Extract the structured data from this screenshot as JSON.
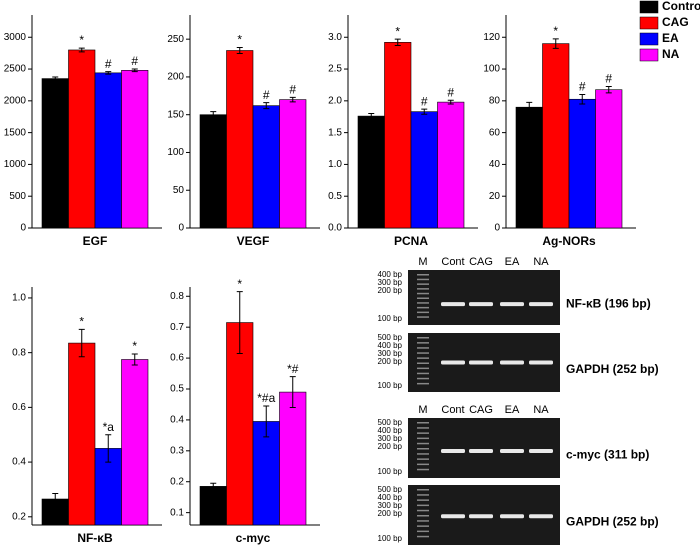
{
  "legend": {
    "series": [
      {
        "name": "Control",
        "color": "#000000"
      },
      {
        "name": "CAG",
        "color": "#ff0000"
      },
      {
        "name": "EA",
        "color": "#0000ff"
      },
      {
        "name": "NA",
        "color": "#ff00ff"
      }
    ]
  },
  "chart_data": [
    {
      "type": "bar",
      "xlabel": "EGF",
      "values": [
        2350,
        2800,
        2440,
        2480
      ],
      "errors": [
        25,
        30,
        20,
        20
      ],
      "annotations": [
        null,
        "*",
        "#",
        "#"
      ],
      "ylim": [
        0,
        3350
      ],
      "yticks": [
        0,
        500,
        1000,
        1500,
        2000,
        2500,
        3000
      ]
    },
    {
      "type": "bar",
      "xlabel": "VEGF",
      "values": [
        150,
        235,
        162,
        170
      ],
      "errors": [
        4,
        4,
        4,
        3
      ],
      "annotations": [
        null,
        "*",
        "#",
        "#"
      ],
      "ylim": [
        0,
        282
      ],
      "yticks": [
        0,
        50,
        100,
        150,
        200,
        250
      ]
    },
    {
      "type": "bar",
      "xlabel": "PCNA",
      "values": [
        1.76,
        2.92,
        1.83,
        1.98
      ],
      "errors": [
        0.04,
        0.05,
        0.04,
        0.03
      ],
      "annotations": [
        null,
        "*",
        "#",
        "#"
      ],
      "ylim": [
        0,
        3.35
      ],
      "yticks": [
        {
          "value": 0,
          "label": "0.0"
        },
        0.5,
        {
          "value": 1,
          "label": "1.0"
        },
        1.5,
        {
          "value": 2,
          "label": "2.0"
        },
        2.5,
        {
          "value": 3,
          "label": "3.0"
        }
      ]
    },
    {
      "type": "bar",
      "xlabel": "Ag-NORs",
      "values": [
        76,
        116,
        81,
        87
      ],
      "errors": [
        3,
        3,
        3,
        2
      ],
      "annotations": [
        null,
        "*",
        "#",
        "#"
      ],
      "ylim": [
        0,
        134
      ],
      "yticks": [
        0,
        20,
        40,
        60,
        80,
        100,
        120
      ]
    },
    {
      "type": "bar",
      "xlabel": "NF-κB",
      "values": [
        0.265,
        0.835,
        0.45,
        0.775
      ],
      "errors": [
        0.02,
        0.05,
        0.05,
        0.02
      ],
      "annotations": [
        null,
        "*",
        "*a",
        "*"
      ],
      "ylim": [
        0.17,
        1.04
      ],
      "yticks": [
        0.2,
        0.4,
        0.6,
        0.8,
        {
          "value": 1,
          "label": "1.0"
        }
      ]
    },
    {
      "type": "bar",
      "xlabel": "c-myc",
      "values": [
        0.185,
        0.715,
        0.395,
        0.49
      ],
      "errors": [
        0.01,
        0.1,
        0.05,
        0.05
      ],
      "annotations": [
        null,
        "*",
        "*#a",
        "*#"
      ],
      "ylim": [
        0.06,
        0.83
      ],
      "yticks": [
        0.1,
        0.2,
        0.3,
        0.4,
        0.5,
        0.6,
        0.7,
        0.8
      ]
    }
  ],
  "gel_panels": [
    {
      "lanes": [
        "M",
        "Cont",
        "CAG",
        "EA",
        "NA"
      ],
      "blots": [
        {
          "ladder": [
            "400 bp",
            "300 bp",
            "200 bp",
            "100 bp"
          ],
          "label": "NF-κB (196 bp)"
        },
        {
          "ladder": [
            "500 bp",
            "400 bp",
            "300 bp",
            "200 bp",
            "100 bp"
          ],
          "label": "GAPDH (252 bp)"
        }
      ]
    },
    {
      "lanes": [
        "M",
        "Cont",
        "CAG",
        "EA",
        "NA"
      ],
      "blots": [
        {
          "ladder": [
            "500 bp",
            "400 bp",
            "300 bp",
            "200 bp",
            "100 bp"
          ],
          "label": "c-myc (311 bp)"
        },
        {
          "ladder": [
            "500 bp",
            "400 bp",
            "300 bp",
            "200 bp",
            "100 bp"
          ],
          "label": "GAPDH (252 bp)"
        }
      ]
    }
  ]
}
